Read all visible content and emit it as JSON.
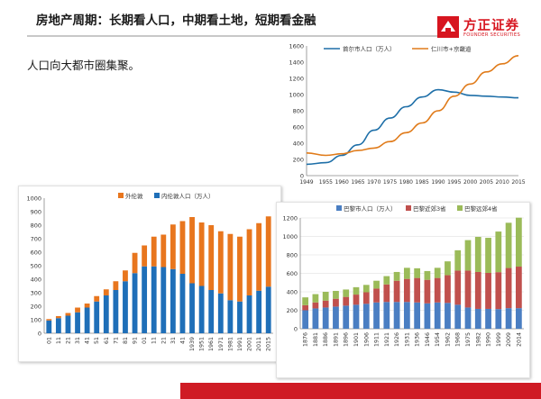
{
  "header": {
    "title": "房地产周期：长期看人口，中期看土地，短期看金融",
    "subtitle": "人口向大都市圈集聚。"
  },
  "logo": {
    "name_cn": "方正证券",
    "name_en": "FOUNDER SECURITIES",
    "color": "#d7151f"
  },
  "chart_data": [
    {
      "type": "line",
      "x": [
        1949,
        1955,
        1960,
        1965,
        1970,
        1975,
        1980,
        1985,
        1990,
        1995,
        2000,
        2005,
        2010,
        2015
      ],
      "series": [
        {
          "name": "首尔市人口（万人）",
          "color": "#1e6fa8",
          "values": [
            140,
            160,
            250,
            380,
            560,
            710,
            850,
            970,
            1060,
            1030,
            990,
            980,
            970,
            960
          ]
        },
        {
          "name": "仁川市+京畿道",
          "color": "#e07b1a",
          "values": [
            280,
            250,
            270,
            310,
            340,
            420,
            530,
            650,
            800,
            980,
            1130,
            1280,
            1380,
            1480
          ]
        }
      ],
      "xticks": [
        "1949",
        "1955",
        "1960",
        "1965",
        "1970",
        "1975",
        "1980",
        "1985",
        "1990",
        "1995",
        "2000",
        "2005",
        "2010",
        "2015"
      ],
      "yticks": [
        0,
        200,
        400,
        600,
        800,
        1000,
        1200,
        1400,
        1600
      ],
      "ylim": [
        0,
        1600
      ],
      "legend": "top",
      "title": "",
      "xlabel": "",
      "ylabel": ""
    },
    {
      "type": "bar",
      "stacked": true,
      "categories": [
        "01",
        "11",
        "21",
        "31",
        "41",
        "51",
        "61",
        "71",
        "81",
        "91",
        "01",
        "11",
        "21",
        "31",
        "41",
        "1939",
        "1951",
        "1961",
        "1971",
        "1981",
        "1991",
        "2001",
        "2011",
        "2015"
      ],
      "series": [
        {
          "name": "内伦敦人口（万人）",
          "color": "#1f6fb8",
          "values": [
            95,
            112,
            130,
            155,
            190,
            235,
            280,
            320,
            385,
            445,
            495,
            495,
            490,
            475,
            440,
            370,
            350,
            320,
            295,
            245,
            235,
            280,
            315,
            345
          ]
        },
        {
          "name": "外伦敦",
          "color": "#e8761e",
          "values": [
            10,
            15,
            20,
            35,
            30,
            40,
            45,
            65,
            80,
            150,
            155,
            220,
            240,
            330,
            390,
            490,
            470,
            480,
            460,
            490,
            480,
            490,
            500,
            520
          ]
        }
      ],
      "ylim": [
        0,
        1000
      ],
      "yticks": [
        0,
        100,
        200,
        300,
        400,
        500,
        600,
        700,
        800,
        900,
        1000
      ],
      "legend": "top",
      "title": "",
      "xlabel": "",
      "ylabel": ""
    },
    {
      "type": "bar",
      "stacked": true,
      "categories": [
        "1876",
        "1881",
        "1886",
        "1891",
        "1896",
        "1901",
        "1906",
        "1911",
        "1921",
        "1926",
        "1931",
        "1936",
        "1946",
        "1954",
        "1962",
        "1968",
        "1975",
        "1982",
        "1990",
        "1999",
        "2009",
        "2014"
      ],
      "series": [
        {
          "name": "巴黎市人口（万人）",
          "color": "#4a7ec2",
          "values": [
            200,
            220,
            230,
            240,
            250,
            260,
            270,
            285,
            290,
            290,
            290,
            285,
            275,
            285,
            280,
            260,
            230,
            215,
            215,
            213,
            223,
            223
          ]
        },
        {
          "name": "巴黎近郊3省",
          "color": "#c0504d",
          "values": [
            55,
            65,
            75,
            85,
            95,
            110,
            125,
            150,
            190,
            230,
            250,
            265,
            255,
            265,
            300,
            370,
            400,
            400,
            390,
            400,
            435,
            450
          ]
        },
        {
          "name": "巴黎远郊4省",
          "color": "#9bbb59",
          "values": [
            85,
            90,
            95,
            85,
            80,
            80,
            80,
            85,
            90,
            95,
            120,
            105,
            95,
            110,
            150,
            220,
            330,
            380,
            380,
            440,
            490,
            530
          ]
        }
      ],
      "ylim": [
        0,
        1200
      ],
      "yticks": [
        0,
        200,
        400,
        600,
        800,
        1000,
        1200
      ],
      "legend": "top",
      "title": "",
      "xlabel": "",
      "ylabel": ""
    }
  ]
}
